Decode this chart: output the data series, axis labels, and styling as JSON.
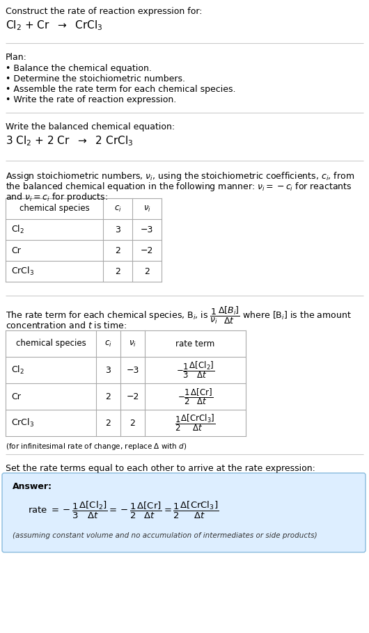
{
  "title_line1": "Construct the rate of reaction expression for:",
  "title_line2": "Cl$_2$ + Cr  $\\rightarrow$  CrCl$_3$",
  "plan_header": "Plan:",
  "plan_items": [
    "• Balance the chemical equation.",
    "• Determine the stoichiometric numbers.",
    "• Assemble the rate term for each chemical species.",
    "• Write the rate of reaction expression."
  ],
  "balanced_header": "Write the balanced chemical equation:",
  "balanced_eq": "3 Cl$_2$ + 2 Cr  $\\rightarrow$  2 CrCl$_3$",
  "assign_text1": "Assign stoichiometric numbers, $\\nu_i$, using the stoichiometric coefficients, $c_i$, from",
  "assign_text2": "the balanced chemical equation in the following manner: $\\nu_i = -c_i$ for reactants",
  "assign_text3": "and $\\nu_i = c_i$ for products:",
  "table1_headers": [
    "chemical species",
    "$c_i$",
    "$\\nu_i$"
  ],
  "table1_rows": [
    [
      "Cl$_2$",
      "3",
      "−3"
    ],
    [
      "Cr",
      "2",
      "−2"
    ],
    [
      "CrCl$_3$",
      "2",
      "2"
    ]
  ],
  "rate_text1": "The rate term for each chemical species, B$_i$, is $\\dfrac{1}{\\nu_i}\\dfrac{\\Delta[B_i]}{\\Delta t}$ where [B$_i$] is the amount",
  "rate_text2": "concentration and $t$ is time:",
  "table2_headers": [
    "chemical species",
    "$c_i$",
    "$\\nu_i$",
    "rate term"
  ],
  "table2_rows": [
    [
      "Cl$_2$",
      "3",
      "−3",
      "$-\\dfrac{1}{3}\\dfrac{\\Delta[\\mathrm{Cl}_2]}{\\Delta t}$"
    ],
    [
      "Cr",
      "2",
      "−2",
      "$-\\dfrac{1}{2}\\dfrac{\\Delta[\\mathrm{Cr}]}{\\Delta t}$"
    ],
    [
      "CrCl$_3$",
      "2",
      "2",
      "$\\dfrac{1}{2}\\dfrac{\\Delta[\\mathrm{CrCl}_3]}{\\Delta t}$"
    ]
  ],
  "infinitesimal_note": "(for infinitesimal rate of change, replace Δ with $d$)",
  "set_rate_text": "Set the rate terms equal to each other to arrive at the rate expression:",
  "answer_label": "Answer:",
  "answer_box_color": "#ddeeff",
  "answer_box_border": "#88bbdd",
  "rate_expression": "rate $= -\\dfrac{1}{3}\\dfrac{\\Delta[\\mathrm{Cl}_2]}{\\Delta t} = -\\dfrac{1}{2}\\dfrac{\\Delta[\\mathrm{Cr}]}{\\Delta t} = \\dfrac{1}{2}\\dfrac{\\Delta[\\mathrm{CrCl}_3]}{\\Delta t}$",
  "assuming_note": "(assuming constant volume and no accumulation of intermediates or side products)",
  "bg_color": "#ffffff",
  "text_color": "#000000",
  "table_line_color": "#aaaaaa",
  "sep_line_color": "#cccccc",
  "font_size": 9,
  "font_size_eq": 11,
  "font_size_small": 7.5
}
